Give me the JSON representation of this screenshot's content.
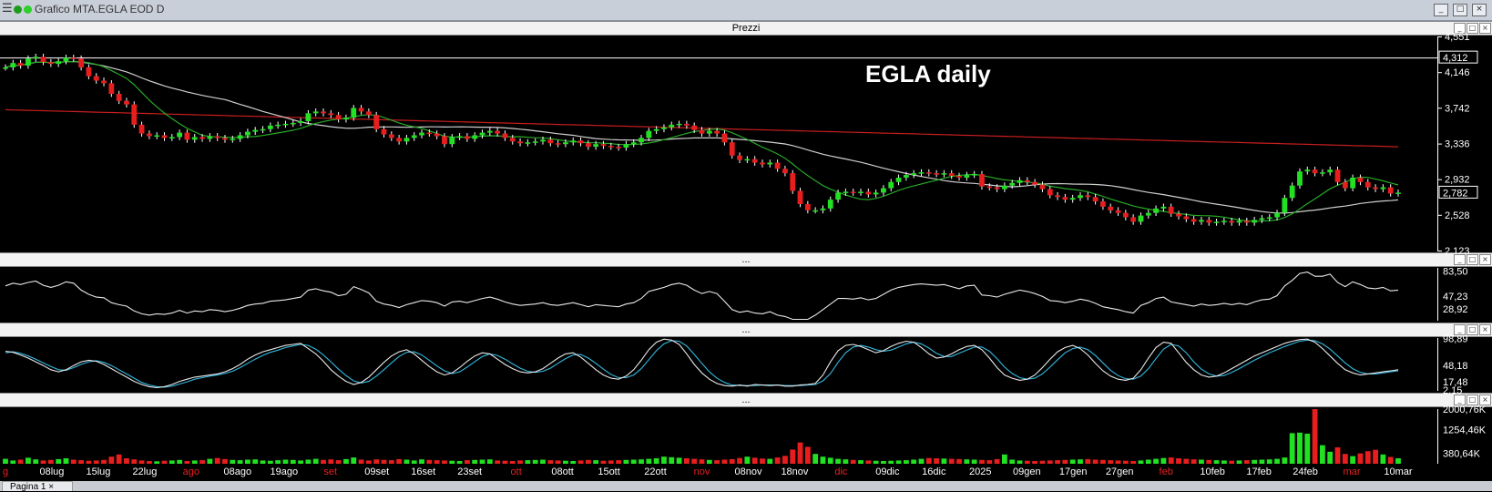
{
  "window": {
    "title": "Grafico MTA.EGLA EOD D"
  },
  "panels": {
    "price_label": "Prezzi",
    "sub_label": "..."
  },
  "tab": {
    "label": "Pagina 1",
    "close": "×"
  },
  "colors": {
    "up": "#22e022",
    "down": "#e81e1e",
    "ma_fast": "#27a827",
    "ma_mid": "#cfcfcf",
    "ma_slow": "#c81e1e",
    "osc": "#e8e8e8",
    "stoch_d": "#33b8e0",
    "price_ref": "#ffffff"
  },
  "chart_data": {
    "type": "candlestick",
    "title": "EGLA daily",
    "price_axis": {
      "ticks": [
        "4,551",
        "4,146",
        "3,742",
        "3,336",
        "2,932",
        "2,528",
        "2,123"
      ],
      "min": 2.123,
      "max": 4.551,
      "ref_value": 4.312,
      "ref_label": "4,312",
      "last_label": "2,782"
    },
    "rsi_axis": {
      "ticks": [
        "83,50",
        "47,23",
        "28,92"
      ],
      "min": 12,
      "max": 88
    },
    "stoch_axis": {
      "ticks": [
        "98,89",
        "48,18",
        "17,48",
        "2,15"
      ],
      "min": 0,
      "max": 100
    },
    "volume_axis": {
      "ticks": [
        "2000,76K",
        "1254,46K",
        "380,64K"
      ],
      "max": 2000.76
    },
    "x_labels": [
      {
        "text": "g",
        "month": true
      },
      {
        "text": "08lug"
      },
      {
        "text": "15lug"
      },
      {
        "text": "22lug"
      },
      {
        "text": "ago",
        "month": true
      },
      {
        "text": "08ago"
      },
      {
        "text": "19ago"
      },
      {
        "text": "set",
        "month": true
      },
      {
        "text": "09set"
      },
      {
        "text": "16set"
      },
      {
        "text": "23set"
      },
      {
        "text": "ott",
        "month": true
      },
      {
        "text": "08ott"
      },
      {
        "text": "15ott"
      },
      {
        "text": "22ott"
      },
      {
        "text": "nov",
        "month": true
      },
      {
        "text": "08nov"
      },
      {
        "text": "18nov"
      },
      {
        "text": "dic",
        "month": true
      },
      {
        "text": "09dic"
      },
      {
        "text": "16dic"
      },
      {
        "text": "2025"
      },
      {
        "text": "09gen"
      },
      {
        "text": "17gen"
      },
      {
        "text": "27gen"
      },
      {
        "text": "feb",
        "month": true
      },
      {
        "text": "10feb"
      },
      {
        "text": "17feb"
      },
      {
        "text": "24feb"
      },
      {
        "text": "mar",
        "month": true
      },
      {
        "text": "10mar"
      }
    ],
    "closes": [
      4.2,
      4.25,
      4.22,
      4.3,
      4.32,
      4.26,
      4.24,
      4.27,
      4.31,
      4.3,
      4.2,
      4.1,
      4.05,
      4.02,
      3.9,
      3.82,
      3.78,
      3.55,
      3.45,
      3.42,
      3.43,
      3.4,
      3.41,
      3.46,
      3.38,
      3.41,
      3.39,
      3.42,
      3.4,
      3.38,
      3.39,
      3.43,
      3.47,
      3.49,
      3.5,
      3.54,
      3.55,
      3.56,
      3.57,
      3.59,
      3.68,
      3.7,
      3.68,
      3.66,
      3.61,
      3.63,
      3.74,
      3.7,
      3.66,
      3.5,
      3.44,
      3.4,
      3.36,
      3.4,
      3.43,
      3.46,
      3.45,
      3.42,
      3.33,
      3.41,
      3.42,
      3.39,
      3.43,
      3.46,
      3.48,
      3.45,
      3.4,
      3.36,
      3.34,
      3.35,
      3.36,
      3.38,
      3.34,
      3.33,
      3.35,
      3.37,
      3.34,
      3.3,
      3.33,
      3.31,
      3.3,
      3.29,
      3.33,
      3.35,
      3.4,
      3.48,
      3.5,
      3.52,
      3.55,
      3.56,
      3.54,
      3.49,
      3.45,
      3.48,
      3.45,
      3.35,
      3.2,
      3.15,
      3.16,
      3.12,
      3.1,
      3.12,
      3.05,
      3.0,
      2.8,
      2.65,
      2.58,
      2.58,
      2.6,
      2.7,
      2.78,
      2.79,
      2.78,
      2.79,
      2.76,
      2.78,
      2.83,
      2.9,
      2.95,
      2.98,
      3.0,
      3.01,
      3.0,
      2.99,
      3.0,
      2.97,
      2.95,
      2.98,
      2.99,
      2.85,
      2.84,
      2.82,
      2.86,
      2.89,
      2.92,
      2.9,
      2.87,
      2.82,
      2.75,
      2.73,
      2.7,
      2.72,
      2.75,
      2.73,
      2.68,
      2.62,
      2.58,
      2.55,
      2.5,
      2.45,
      2.52,
      2.55,
      2.6,
      2.62,
      2.54,
      2.51,
      2.48,
      2.45,
      2.47,
      2.44,
      2.45,
      2.46,
      2.44,
      2.46,
      2.44,
      2.47,
      2.49,
      2.5,
      2.55,
      2.72,
      2.86,
      3.02,
      3.04,
      3.0,
      3.01,
      3.04,
      2.9,
      2.83,
      2.95,
      2.9,
      2.84,
      2.82,
      2.84,
      2.77,
      2.78
    ],
    "rsi": [
      62,
      66,
      64,
      67,
      69,
      63,
      60,
      63,
      68,
      66,
      56,
      50,
      46,
      45,
      38,
      35,
      33,
      26,
      22,
      20,
      22,
      21,
      23,
      27,
      23,
      26,
      25,
      28,
      27,
      25,
      27,
      30,
      34,
      36,
      37,
      40,
      41,
      42,
      44,
      46,
      56,
      58,
      55,
      53,
      48,
      50,
      61,
      57,
      52,
      40,
      36,
      34,
      31,
      35,
      38,
      41,
      40,
      38,
      33,
      39,
      40,
      38,
      41,
      44,
      46,
      43,
      39,
      36,
      34,
      35,
      36,
      38,
      35,
      34,
      36,
      38,
      35,
      32,
      35,
      34,
      33,
      32,
      36,
      38,
      44,
      54,
      57,
      60,
      64,
      66,
      63,
      56,
      51,
      54,
      51,
      40,
      28,
      24,
      26,
      23,
      22,
      25,
      20,
      18,
      14,
      14,
      14,
      20,
      28,
      36,
      44,
      44,
      43,
      45,
      42,
      44,
      50,
      56,
      60,
      62,
      64,
      65,
      64,
      63,
      64,
      61,
      58,
      62,
      63,
      49,
      48,
      46,
      50,
      53,
      56,
      54,
      51,
      47,
      41,
      40,
      38,
      40,
      43,
      41,
      37,
      32,
      30,
      28,
      25,
      23,
      34,
      38,
      44,
      46,
      39,
      37,
      35,
      33,
      36,
      34,
      35,
      37,
      35,
      37,
      35,
      39,
      42,
      43,
      48,
      62,
      70,
      80,
      82,
      76,
      76,
      79,
      67,
      61,
      68,
      64,
      59,
      58,
      60,
      55,
      56
    ],
    "stoch_k": [
      75,
      73,
      68,
      62,
      55,
      48,
      40,
      36,
      40,
      48,
      55,
      58,
      56,
      50,
      42,
      34,
      26,
      18,
      12,
      8,
      6,
      8,
      12,
      18,
      22,
      26,
      28,
      30,
      32,
      36,
      42,
      50,
      60,
      68,
      74,
      78,
      82,
      86,
      88,
      90,
      80,
      70,
      56,
      40,
      28,
      18,
      12,
      16,
      26,
      40,
      54,
      66,
      74,
      78,
      70,
      58,
      46,
      36,
      30,
      34,
      44,
      56,
      66,
      72,
      70,
      60,
      50,
      42,
      36,
      34,
      36,
      42,
      52,
      62,
      70,
      72,
      64,
      52,
      40,
      30,
      24,
      22,
      28,
      40,
      58,
      78,
      92,
      98,
      96,
      88,
      70,
      50,
      34,
      22,
      14,
      10,
      9,
      11,
      9,
      12,
      11,
      10,
      11,
      9,
      9,
      11,
      12,
      14,
      30,
      55,
      76,
      86,
      88,
      84,
      78,
      72,
      76,
      84,
      90,
      94,
      92,
      82,
      70,
      62,
      64,
      70,
      78,
      84,
      86,
      78,
      62,
      44,
      30,
      24,
      20,
      22,
      30,
      44,
      60,
      74,
      82,
      86,
      80,
      68,
      52,
      38,
      28,
      22,
      20,
      24,
      40,
      62,
      82,
      92,
      90,
      72,
      54,
      40,
      30,
      26,
      28,
      34,
      42,
      50,
      58,
      66,
      72,
      78,
      84,
      90,
      94,
      97,
      98,
      92,
      80,
      66,
      52,
      40,
      34,
      30,
      32,
      34,
      36,
      38,
      40
    ],
    "stoch_d": [
      72,
      74,
      71,
      66,
      60,
      53,
      46,
      40,
      39,
      44,
      50,
      55,
      57,
      54,
      48,
      40,
      32,
      24,
      16,
      11,
      8,
      7,
      9,
      13,
      17,
      22,
      25,
      28,
      30,
      33,
      37,
      44,
      52,
      60,
      67,
      73,
      77,
      82,
      85,
      88,
      86,
      79,
      68,
      55,
      41,
      29,
      19,
      15,
      18,
      28,
      40,
      53,
      65,
      73,
      74,
      68,
      58,
      47,
      38,
      33,
      36,
      45,
      55,
      65,
      70,
      67,
      60,
      51,
      43,
      37,
      35,
      37,
      43,
      52,
      61,
      68,
      69,
      62,
      52,
      41,
      31,
      25,
      25,
      30,
      42,
      59,
      76,
      89,
      95,
      94,
      85,
      69,
      52,
      36,
      24,
      16,
      11,
      10,
      10,
      10,
      11,
      11,
      11,
      10,
      10,
      10,
      11,
      12,
      19,
      33,
      54,
      72,
      83,
      86,
      83,
      78,
      75,
      77,
      83,
      89,
      92,
      89,
      81,
      71,
      65,
      65,
      71,
      77,
      83,
      83,
      75,
      61,
      45,
      33,
      25,
      22,
      24,
      32,
      45,
      59,
      72,
      80,
      83,
      78,
      67,
      53,
      39,
      29,
      23,
      22,
      28,
      42,
      61,
      79,
      88,
      85,
      72,
      55,
      41,
      32,
      28,
      29,
      35,
      42,
      50,
      58,
      65,
      72,
      78,
      84,
      89,
      94,
      96,
      95,
      89,
      79,
      66,
      53,
      42,
      35,
      32,
      32,
      34,
      36,
      38
    ],
    "volume": [
      180,
      120,
      150,
      220,
      160,
      120,
      140,
      170,
      200,
      150,
      130,
      110,
      120,
      140,
      260,
      340,
      200,
      160,
      120,
      100,
      90,
      110,
      120,
      140,
      100,
      120,
      130,
      180,
      210,
      170,
      140,
      130,
      150,
      160,
      120,
      110,
      130,
      150,
      140,
      120,
      150,
      180,
      140,
      160,
      130,
      170,
      230,
      150,
      120,
      160,
      140,
      130,
      170,
      150,
      120,
      160,
      140,
      130,
      120,
      110,
      100,
      130,
      140,
      150,
      160,
      120,
      110,
      100,
      120,
      130,
      140,
      150,
      130,
      120,
      110,
      100,
      120,
      140,
      130,
      110,
      120,
      130,
      140,
      150,
      160,
      180,
      200,
      260,
      240,
      220,
      200,
      180,
      160,
      140,
      130,
      150,
      170,
      210,
      260,
      220,
      190,
      180,
      230,
      290,
      520,
      780,
      620,
      360,
      260,
      220,
      180,
      160,
      140,
      130,
      120,
      110,
      100,
      110,
      120,
      130,
      150,
      180,
      210,
      200,
      190,
      180,
      170,
      160,
      150,
      140,
      130,
      170,
      340,
      150,
      120,
      110,
      100,
      110,
      120,
      130,
      140,
      150,
      160,
      170,
      150,
      140,
      130,
      120,
      110,
      100,
      120,
      150,
      180,
      210,
      230,
      200,
      180,
      160,
      150,
      140,
      130,
      120,
      110,
      120,
      130,
      140,
      150,
      160,
      180,
      230,
      1120,
      1140,
      1100,
      2000,
      680,
      440,
      600,
      360,
      280,
      380,
      460,
      510,
      340,
      250,
      200
    ]
  }
}
